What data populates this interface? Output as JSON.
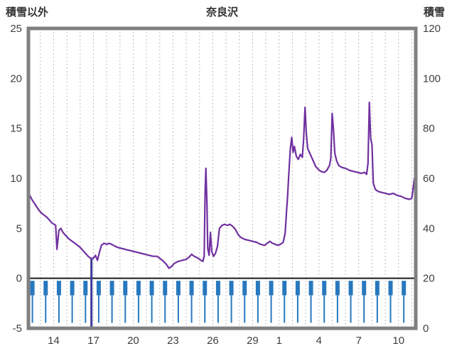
{
  "chart_data": {
    "type": "line",
    "title": "奈良沢",
    "left_axis": {
      "label": "積雪以外",
      "min": -5,
      "max": 25,
      "ticks": [
        25,
        20,
        15,
        10,
        5,
        0,
        -5
      ]
    },
    "right_axis": {
      "label": "積雪",
      "min": 0,
      "max": 120,
      "ticks": [
        120,
        100,
        80,
        60,
        40,
        20,
        0
      ]
    },
    "x_axis": {
      "tick_labels": [
        "14",
        "17",
        "20",
        "23",
        "26",
        "29",
        "1",
        "4",
        "7",
        "10"
      ],
      "tick_days": [
        14,
        17,
        20,
        23,
        26,
        29,
        31,
        34,
        37,
        40
      ],
      "domain": [
        12.1,
        41.3
      ],
      "grid_day_start": 13,
      "grid_day_end": 41,
      "grid_on": true
    },
    "colors": {
      "series": "#7030A0",
      "spikes": "#2878BE",
      "gap_line": "#3A3A99",
      "frame": "#808080",
      "grid": "#BEBEBE",
      "zero_line": "#1A1A1A",
      "text": "#404040"
    },
    "series": [
      {
        "name": "snow-depth-line",
        "axis": "left",
        "color": "#7030A0",
        "points": [
          [
            12.2,
            8.3
          ],
          [
            12.35,
            7.9
          ],
          [
            12.5,
            7.6
          ],
          [
            12.7,
            7.2
          ],
          [
            12.9,
            6.8
          ],
          [
            13.1,
            6.5
          ],
          [
            13.3,
            6.3
          ],
          [
            13.5,
            6.1
          ],
          [
            13.7,
            5.8
          ],
          [
            13.9,
            5.5
          ],
          [
            14.05,
            5.4
          ],
          [
            14.15,
            5.3
          ],
          [
            14.25,
            2.9
          ],
          [
            14.4,
            4.8
          ],
          [
            14.55,
            5.0
          ],
          [
            14.7,
            4.6
          ],
          [
            14.9,
            4.3
          ],
          [
            15.1,
            4.0
          ],
          [
            15.4,
            3.7
          ],
          [
            15.7,
            3.4
          ],
          [
            16.0,
            3.1
          ],
          [
            16.2,
            2.8
          ],
          [
            16.4,
            2.5
          ],
          [
            16.6,
            2.2
          ],
          [
            16.8,
            2.0
          ],
          [
            17.0,
            2.0
          ],
          [
            17.15,
            2.3
          ],
          [
            17.3,
            1.8
          ],
          [
            17.45,
            2.6
          ],
          [
            17.6,
            3.3
          ],
          [
            17.8,
            3.5
          ],
          [
            18.0,
            3.4
          ],
          [
            18.2,
            3.5
          ],
          [
            18.5,
            3.3
          ],
          [
            18.8,
            3.1
          ],
          [
            19.1,
            3.0
          ],
          [
            19.4,
            2.9
          ],
          [
            19.7,
            2.8
          ],
          [
            20.0,
            2.7
          ],
          [
            20.3,
            2.6
          ],
          [
            20.6,
            2.5
          ],
          [
            20.9,
            2.4
          ],
          [
            21.2,
            2.3
          ],
          [
            21.5,
            2.2
          ],
          [
            21.8,
            2.2
          ],
          [
            22.0,
            2.0
          ],
          [
            22.2,
            1.8
          ],
          [
            22.5,
            1.4
          ],
          [
            22.7,
            1.0
          ],
          [
            22.9,
            1.2
          ],
          [
            23.1,
            1.5
          ],
          [
            23.4,
            1.7
          ],
          [
            23.7,
            1.8
          ],
          [
            24.0,
            1.9
          ],
          [
            24.2,
            2.1
          ],
          [
            24.4,
            2.4
          ],
          [
            24.6,
            2.2
          ],
          [
            24.9,
            2.0
          ],
          [
            25.1,
            1.8
          ],
          [
            25.25,
            1.7
          ],
          [
            25.35,
            2.2
          ],
          [
            25.42,
            8.6
          ],
          [
            25.48,
            11.0
          ],
          [
            25.56,
            7.5
          ],
          [
            25.62,
            3.0
          ],
          [
            25.72,
            2.3
          ],
          [
            25.82,
            4.6
          ],
          [
            25.92,
            2.7
          ],
          [
            26.05,
            2.2
          ],
          [
            26.2,
            2.5
          ],
          [
            26.35,
            3.2
          ],
          [
            26.5,
            5.0
          ],
          [
            26.7,
            5.3
          ],
          [
            26.9,
            5.4
          ],
          [
            27.1,
            5.3
          ],
          [
            27.3,
            5.4
          ],
          [
            27.5,
            5.2
          ],
          [
            27.7,
            4.9
          ],
          [
            27.9,
            4.4
          ],
          [
            28.1,
            4.1
          ],
          [
            28.4,
            3.9
          ],
          [
            28.7,
            3.8
          ],
          [
            29.0,
            3.7
          ],
          [
            29.3,
            3.6
          ],
          [
            29.6,
            3.4
          ],
          [
            29.9,
            3.3
          ],
          [
            30.1,
            3.5
          ],
          [
            30.3,
            3.7
          ],
          [
            30.5,
            3.5
          ],
          [
            30.7,
            3.4
          ],
          [
            30.9,
            3.3
          ],
          [
            31.1,
            3.4
          ],
          [
            31.3,
            3.6
          ],
          [
            31.45,
            4.5
          ],
          [
            31.55,
            6.5
          ],
          [
            31.65,
            8.5
          ],
          [
            31.75,
            11.0
          ],
          [
            31.85,
            13.0
          ],
          [
            31.95,
            14.1
          ],
          [
            32.05,
            12.6
          ],
          [
            32.15,
            13.2
          ],
          [
            32.3,
            12.2
          ],
          [
            32.45,
            11.9
          ],
          [
            32.6,
            12.4
          ],
          [
            32.75,
            12.1
          ],
          [
            32.85,
            14.0
          ],
          [
            32.95,
            17.1
          ],
          [
            33.05,
            14.5
          ],
          [
            33.15,
            13.0
          ],
          [
            33.35,
            12.4
          ],
          [
            33.55,
            11.8
          ],
          [
            33.75,
            11.2
          ],
          [
            33.95,
            10.9
          ],
          [
            34.15,
            10.7
          ],
          [
            34.4,
            10.6
          ],
          [
            34.6,
            10.8
          ],
          [
            34.8,
            11.3
          ],
          [
            34.9,
            12.0
          ],
          [
            35.0,
            16.5
          ],
          [
            35.1,
            14.8
          ],
          [
            35.2,
            12.5
          ],
          [
            35.35,
            11.7
          ],
          [
            35.5,
            11.3
          ],
          [
            35.7,
            11.1
          ],
          [
            36.0,
            11.0
          ],
          [
            36.3,
            10.8
          ],
          [
            36.6,
            10.7
          ],
          [
            36.9,
            10.6
          ],
          [
            37.2,
            10.5
          ],
          [
            37.45,
            10.6
          ],
          [
            37.6,
            10.4
          ],
          [
            37.7,
            11.5
          ],
          [
            37.8,
            17.6
          ],
          [
            37.9,
            14.0
          ],
          [
            38.0,
            13.4
          ],
          [
            38.1,
            9.5
          ],
          [
            38.25,
            8.9
          ],
          [
            38.45,
            8.7
          ],
          [
            38.7,
            8.6
          ],
          [
            39.0,
            8.5
          ],
          [
            39.3,
            8.4
          ],
          [
            39.6,
            8.5
          ],
          [
            39.9,
            8.3
          ],
          [
            40.2,
            8.2
          ],
          [
            40.5,
            8.0
          ],
          [
            40.8,
            7.9
          ],
          [
            41.0,
            8.0
          ],
          [
            41.1,
            9.0
          ],
          [
            41.2,
            10.0
          ]
        ]
      }
    ],
    "spikes": {
      "name": "daily-marker-spikes",
      "color": "#2878BE",
      "top": -0.25,
      "head_bottom": -1.7,
      "depth": -4.45,
      "days": [
        12.4,
        13.4,
        14.4,
        15.4,
        16.4,
        17.4,
        18.4,
        19.4,
        20.4,
        21.4,
        22.4,
        23.4,
        24.4,
        25.4,
        26.4,
        27.4,
        28.4,
        29.4,
        30.4,
        31.4,
        32.4,
        33.4,
        34.4,
        35.4,
        36.4,
        37.4,
        38.4,
        39.4,
        40.4
      ]
    },
    "gap_line": {
      "day": 16.85,
      "from": 2.0,
      "to": -5.0,
      "color": "#3A3A99"
    }
  }
}
